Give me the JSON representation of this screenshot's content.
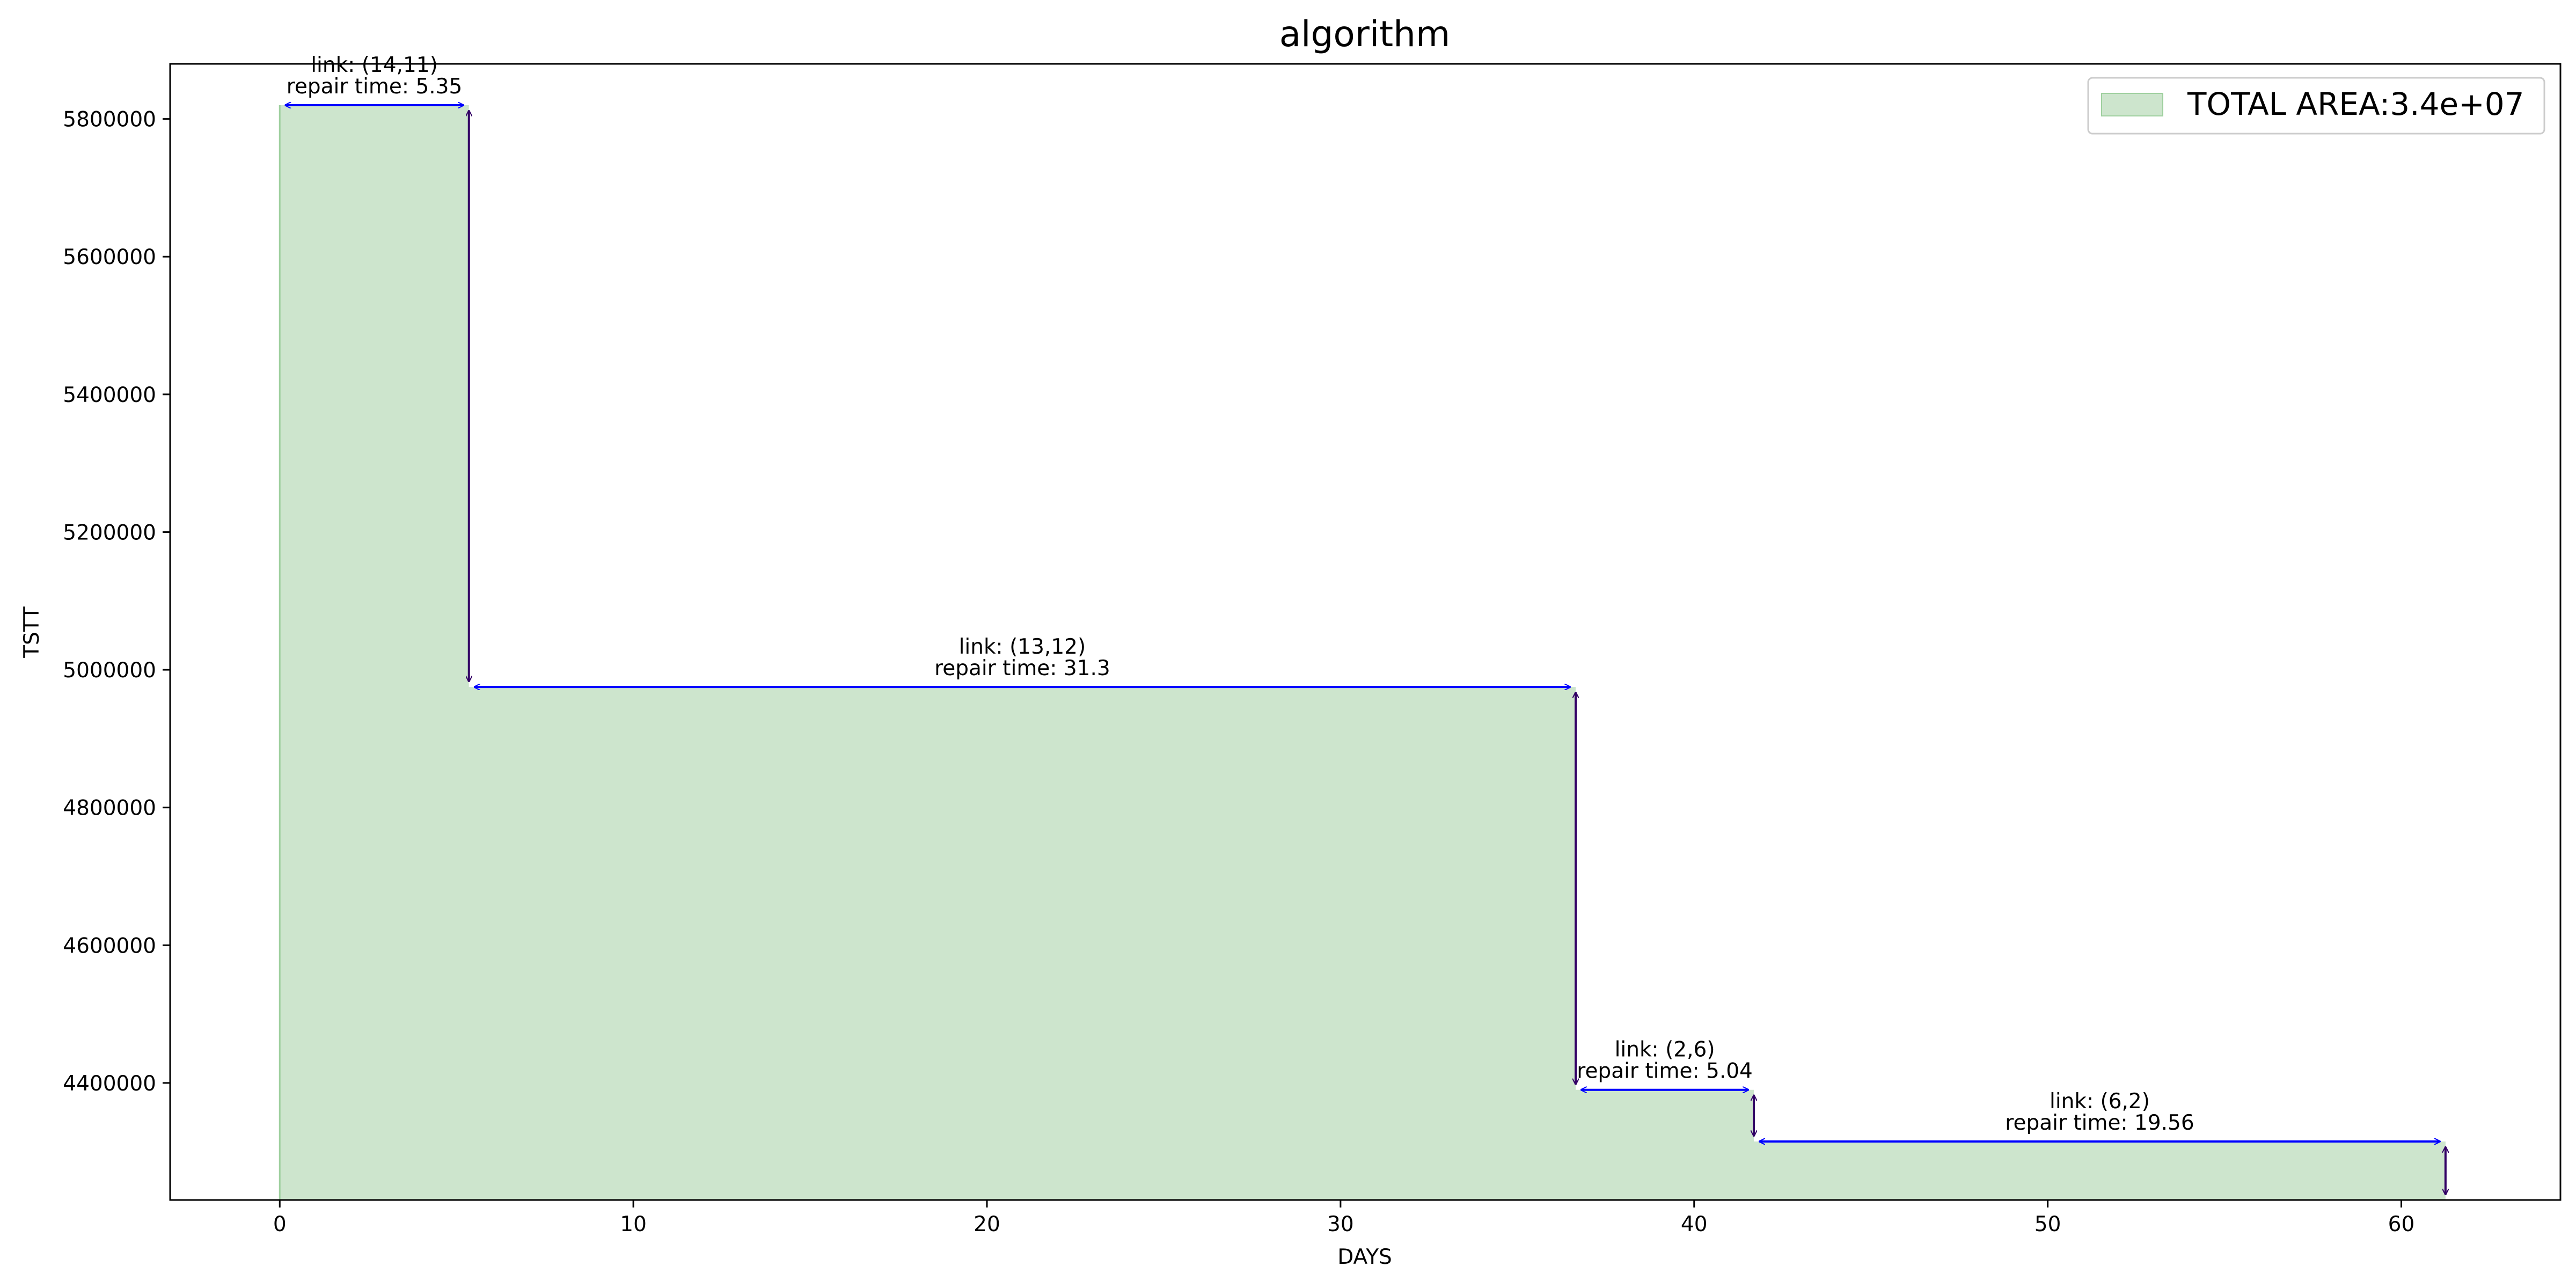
{
  "chart_data": {
    "type": "area",
    "title": "algorithm",
    "xlabel": "DAYS",
    "ylabel": "TSTT",
    "xlim": [
      -3.1,
      64.5
    ],
    "ylim": [
      4230000,
      5880000
    ],
    "xticks": [
      0,
      10,
      20,
      30,
      40,
      50,
      60
    ],
    "xtick_labels": [
      "0",
      "10",
      "20",
      "30",
      "40",
      "50",
      "60"
    ],
    "yticks": [
      4400000,
      4600000,
      4800000,
      5000000,
      5200000,
      5400000,
      5600000,
      5800000
    ],
    "ytick_labels": [
      "4400000",
      "4600000",
      "4800000",
      "5000000",
      "5200000",
      "5400000",
      "5600000",
      "5800000"
    ],
    "grid": false,
    "legend": {
      "entries": [
        "TOTAL AREA:3.4e+07"
      ],
      "placement": "upper right"
    },
    "steps": [
      {
        "x_start": 0.0,
        "x_end": 5.35,
        "tstt": 5820000
      },
      {
        "x_start": 5.35,
        "x_end": 36.65,
        "tstt": 4975000
      },
      {
        "x_start": 36.65,
        "x_end": 41.69,
        "tstt": 4390000
      },
      {
        "x_start": 41.69,
        "x_end": 61.25,
        "tstt": 4315000
      }
    ],
    "area_floor": 4230000,
    "annotations": [
      {
        "link": "link: (14,11)",
        "repair": "repair time: 5.35"
      },
      {
        "link": "link: (13,12)",
        "repair": "repair time: 31.3"
      },
      {
        "link": "link: (2,6)",
        "repair": "repair time: 5.04"
      },
      {
        "link": "link: (6,2)",
        "repair": "repair time: 19.56"
      }
    ],
    "colors": {
      "area_fill": "#cde5cd",
      "area_edge": "#9fd09f",
      "h_arrow": "#0000ff",
      "v_arrow": "#330066"
    }
  }
}
